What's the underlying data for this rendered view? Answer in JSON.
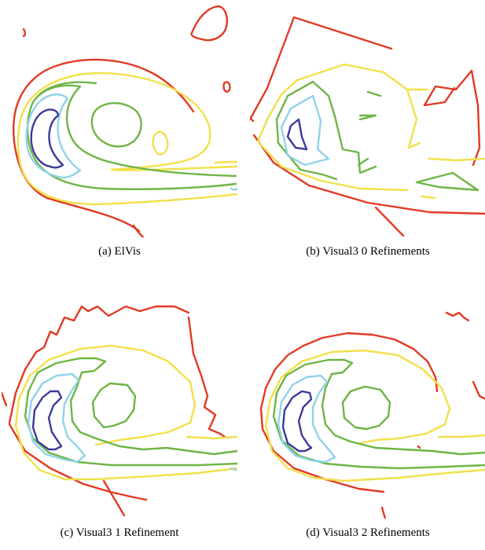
{
  "colors": {
    "red": "#e23a24",
    "yellow": "#f2e04a",
    "green": "#6db545",
    "cyan": "#8fd3ea",
    "blue": "#3a3a9a"
  },
  "figures": [
    {
      "caption": "(a)  ElVis",
      "contour_levels": [
        "red",
        "yellow",
        "green",
        "cyan",
        "blue"
      ]
    },
    {
      "caption": "(b)  Visual3 0 Refinements",
      "contour_levels": [
        "red",
        "yellow",
        "green",
        "cyan",
        "blue"
      ]
    },
    {
      "caption": "(c)  Visual3 1 Refinement",
      "contour_levels": [
        "red",
        "yellow",
        "green",
        "cyan",
        "blue"
      ]
    },
    {
      "caption": "(d)  Visual3 2 Refinements",
      "contour_levels": [
        "red",
        "yellow",
        "green",
        "cyan",
        "blue"
      ]
    }
  ]
}
